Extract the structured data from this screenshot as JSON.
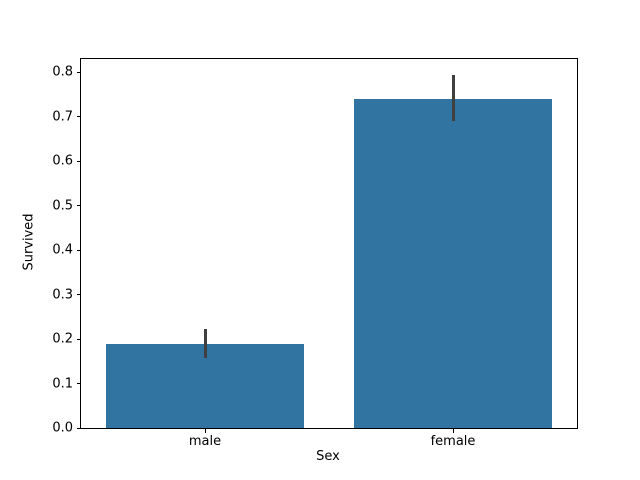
{
  "figure": {
    "background": "#ffffff"
  },
  "chart_data": {
    "type": "bar",
    "title": "",
    "categories": [
      "male",
      "female"
    ],
    "values": [
      0.19,
      0.74
    ],
    "error_bars": [
      {
        "low": 0.158,
        "high": 0.222
      },
      {
        "low": 0.69,
        "high": 0.795
      }
    ],
    "xlabel": "Sex",
    "ylabel": "Survived",
    "yticks": [
      0.0,
      0.1,
      0.2,
      0.3,
      0.4,
      0.5,
      0.6,
      0.7,
      0.8
    ],
    "ylim": [
      0,
      0.83
    ],
    "bar_width_fraction": 0.8,
    "grid": false,
    "legend": null,
    "bar_color": "#3274a1",
    "error_bar_color": "#404040",
    "spine_color": "#000000",
    "text_color": "#000000"
  }
}
